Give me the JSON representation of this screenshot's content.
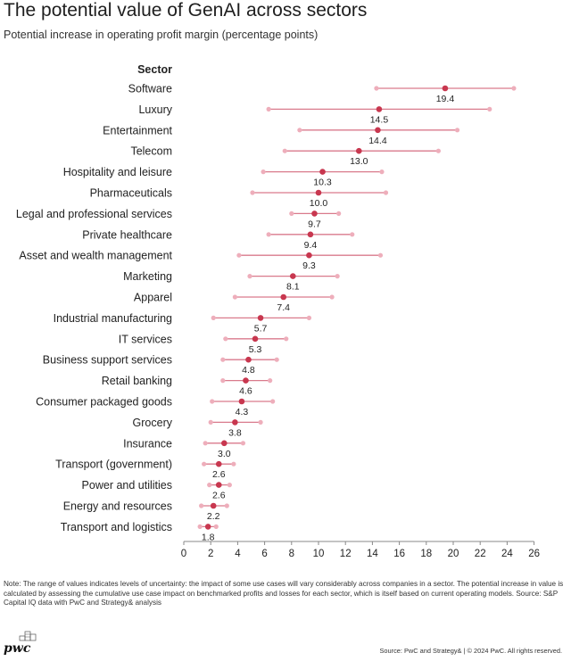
{
  "title": "The potential value of GenAI across sectors",
  "subtitle": "Potential increase in operating profit margin (percentage points)",
  "note": "Note: The range of values indicates levels of uncertainty: the impact of some use cases will vary considerably across companies in a sector. The potential increase in value is calculated by assessing the cumulative use case impact on benchmarked profits and losses for each sector, which is itself based on current operating models. Source: S&P Capital IQ data with PwC and Strategy& analysis",
  "source": "Source: PwC and Strategy&  |  © 2024 PwC. All rights reserved.",
  "logo_text": "pwc",
  "colors": {
    "point": "#c8374f",
    "range_line": "#d97a8c",
    "range_end": "#eeaebb",
    "axis": "#888888",
    "text": "#222222"
  },
  "chart_data": {
    "type": "dot-range",
    "category_header": "Sector",
    "xlim": [
      0,
      26
    ],
    "xticks": [
      0,
      2,
      4,
      6,
      8,
      10,
      12,
      14,
      16,
      18,
      20,
      22,
      24,
      26
    ],
    "grid": false,
    "categories": [
      "Software",
      "Luxury",
      "Entertainment",
      "Telecom",
      "Hospitality and leisure",
      "Pharmaceuticals",
      "Legal and professional services",
      "Private healthcare",
      "Asset and wealth management",
      "Marketing",
      "Apparel",
      "Industrial manufacturing",
      "IT services",
      "Business support services",
      "Retail banking",
      "Consumer packaged goods",
      "Grocery",
      "Insurance",
      "Transport (government)",
      "Power and utilities",
      "Energy and resources",
      "Transport and logistics"
    ],
    "values": [
      19.4,
      14.5,
      14.4,
      13.0,
      10.3,
      10.0,
      9.7,
      9.4,
      9.3,
      8.1,
      7.4,
      5.7,
      5.3,
      4.8,
      4.6,
      4.3,
      3.8,
      3.0,
      2.6,
      2.6,
      2.2,
      1.8
    ],
    "value_labels": [
      "19.4",
      "14.5",
      "14.4",
      "13.0",
      "10.3",
      "10.0",
      "9.7",
      "9.4",
      "9.3",
      "8.1",
      "7.4",
      "5.7",
      "5.3",
      "4.8",
      "4.6",
      "4.3",
      "3.8",
      "3.0",
      "2.6",
      "2.6",
      "2.2",
      "1.8"
    ],
    "low": [
      14.3,
      6.3,
      8.6,
      7.5,
      5.9,
      5.1,
      8.0,
      6.3,
      4.1,
      4.9,
      3.8,
      2.2,
      3.1,
      2.9,
      2.9,
      2.1,
      2.0,
      1.6,
      1.5,
      1.9,
      1.3,
      1.2
    ],
    "high": [
      24.5,
      22.7,
      20.3,
      18.9,
      14.7,
      15.0,
      11.5,
      12.5,
      14.6,
      11.4,
      11.0,
      9.3,
      7.6,
      6.9,
      6.4,
      6.6,
      5.7,
      4.4,
      3.7,
      3.4,
      3.2,
      2.4
    ]
  }
}
